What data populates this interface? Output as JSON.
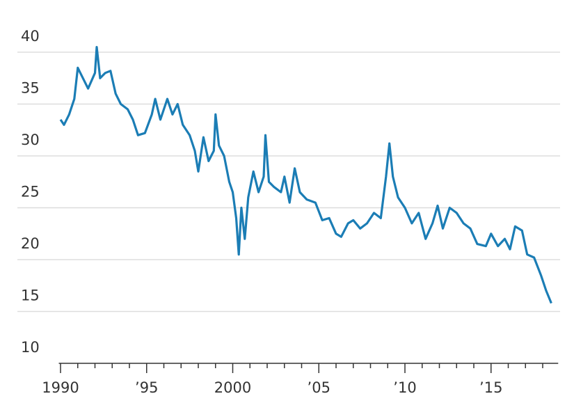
{
  "chart_data": {
    "type": "line",
    "x": [
      1990.0,
      1990.2,
      1990.5,
      1990.8,
      1991.0,
      1991.3,
      1991.6,
      1992.0,
      1992.1,
      1992.3,
      1992.6,
      1992.9,
      1993.2,
      1993.5,
      1993.9,
      1994.2,
      1994.5,
      1994.9,
      1995.3,
      1995.5,
      1995.8,
      1996.2,
      1996.5,
      1996.8,
      1997.1,
      1997.5,
      1997.8,
      1998.0,
      1998.3,
      1998.6,
      1998.9,
      1999.0,
      1999.2,
      1999.5,
      1999.8,
      2000.0,
      2000.2,
      2000.35,
      2000.5,
      2000.7,
      2000.9,
      2001.2,
      2001.5,
      2001.8,
      2001.9,
      2002.1,
      2002.4,
      2002.8,
      2003.0,
      2003.3,
      2003.6,
      2003.9,
      2004.3,
      2004.8,
      2005.2,
      2005.6,
      2006.0,
      2006.3,
      2006.7,
      2007.0,
      2007.4,
      2007.8,
      2008.2,
      2008.6,
      2008.9,
      2009.1,
      2009.3,
      2009.6,
      2010.0,
      2010.4,
      2010.8,
      2011.2,
      2011.6,
      2011.9,
      2012.2,
      2012.6,
      2013.0,
      2013.4,
      2013.8,
      2014.2,
      2014.7,
      2015.0,
      2015.4,
      2015.8,
      2016.1,
      2016.4,
      2016.8,
      2017.1,
      2017.5,
      2017.9,
      2018.2,
      2018.5
    ],
    "series": [
      {
        "color": "#1b7db5",
        "values": [
          33.5,
          33,
          34,
          35.5,
          38.5,
          37.5,
          36.5,
          38,
          40.5,
          37.5,
          38,
          38.2,
          36,
          35,
          34.5,
          33.5,
          32,
          32.2,
          34,
          35.5,
          33.5,
          35.5,
          34,
          35,
          33,
          32,
          30.5,
          28.5,
          31.8,
          29.5,
          30.5,
          34,
          31,
          30,
          27.5,
          26.5,
          24,
          20.5,
          25,
          22,
          26,
          28.5,
          26.5,
          28,
          32,
          27.5,
          27,
          26.5,
          28,
          25.5,
          28.8,
          26.5,
          25.8,
          25.5,
          23.8,
          24,
          22.5,
          22.2,
          23.5,
          23.8,
          23,
          23.5,
          24.5,
          24,
          28,
          31.2,
          28,
          26,
          25,
          23.5,
          24.5,
          22,
          23.5,
          25.2,
          23,
          25,
          24.5,
          23.5,
          23,
          21.5,
          21.3,
          22.5,
          21.3,
          22,
          21,
          23.2,
          22.8,
          20.5,
          20.2,
          18.5,
          17,
          15.8
        ]
      }
    ],
    "xlim": [
      1989.9,
      2018.9
    ],
    "xticks": [
      1990,
      {
        "value": 1995,
        "label": "’95"
      },
      2000,
      {
        "value": 2005,
        "label": "’05"
      },
      {
        "value": 2010,
        "label": "’10"
      },
      {
        "value": 2015,
        "label": "’15"
      }
    ],
    "xminorticks": [
      1991,
      1992,
      1993,
      1994,
      1996,
      1997,
      1998,
      1999,
      2001,
      2002,
      2003,
      2004,
      2006,
      2007,
      2008,
      2009,
      2011,
      2012,
      2013,
      2014,
      2016,
      2017,
      2018
    ],
    "ylim": [
      10,
      45
    ],
    "yticks": [
      10,
      15,
      20,
      25,
      30,
      35,
      40
    ],
    "grid": true
  }
}
